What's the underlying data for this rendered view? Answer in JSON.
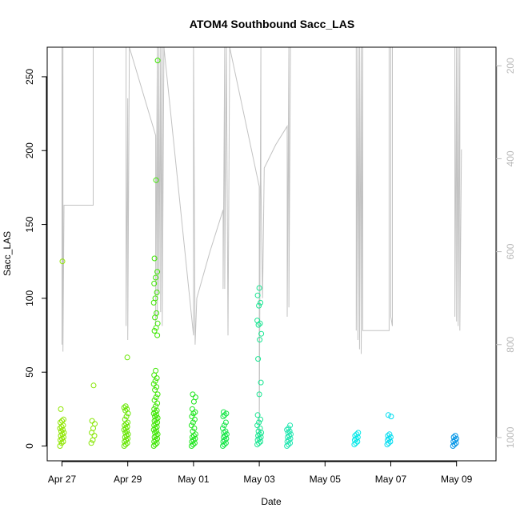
{
  "chart_data": {
    "type": "scatter",
    "title": "ATOM4 Southbound Sacc_LAS",
    "xlabel": "Date",
    "ylabel": "Sacc_LAS",
    "x_ticks": [
      "Apr 27",
      "Apr 29",
      "May 01",
      "May 03",
      "May 05",
      "May 07",
      "May 09"
    ],
    "x_tick_days": [
      0,
      2,
      4,
      6,
      8,
      10,
      12
    ],
    "xlim_days": [
      -0.45,
      13.2
    ],
    "ylim": [
      -10,
      270
    ],
    "y_ticks": [
      0,
      50,
      100,
      150,
      200,
      250
    ],
    "right_axis": {
      "ticks": [
        200,
        400,
        600,
        800,
        1000
      ],
      "range_reversed": [
        160,
        1050
      ],
      "color": "#b9b9b9",
      "description": "depth profile trace, inverted axis"
    },
    "point_style": "open circle",
    "clusters": [
      {
        "day": 0.0,
        "color": "#8fe600",
        "values": [
          0,
          2,
          3,
          4,
          5,
          6,
          7,
          8,
          9,
          10,
          11,
          12,
          13,
          14,
          16,
          17,
          18,
          25,
          125
        ]
      },
      {
        "day": 0.95,
        "color": "#86e600",
        "values": [
          2,
          4,
          7,
          9,
          12,
          15,
          17,
          41
        ]
      },
      {
        "day": 1.95,
        "color": "#66e600",
        "values": [
          0,
          1,
          2,
          3,
          4,
          5,
          6,
          7,
          8,
          9,
          10,
          11,
          12,
          13,
          14,
          15,
          16,
          18,
          20,
          22,
          24,
          25,
          26,
          27,
          60
        ]
      },
      {
        "day": 2.85,
        "color": "#3de600",
        "values": [
          0,
          1,
          2,
          3,
          4,
          5,
          6,
          7,
          8,
          9,
          10,
          11,
          12,
          13,
          14,
          15,
          16,
          17,
          18,
          19,
          20,
          21,
          22,
          23,
          24,
          25,
          27,
          29,
          31,
          33,
          35,
          38,
          40,
          42,
          44,
          46,
          48,
          51,
          75,
          78,
          80,
          83,
          87,
          90,
          97,
          100,
          104,
          110,
          114,
          118,
          127,
          180,
          261
        ]
      },
      {
        "day": 4.0,
        "color": "#1ee61e",
        "values": [
          0,
          1,
          2,
          3,
          4,
          5,
          6,
          7,
          8,
          10,
          12,
          14,
          16,
          18,
          20,
          22,
          23,
          25,
          30,
          33,
          35
        ]
      },
      {
        "day": 4.95,
        "color": "#14e646",
        "values": [
          0,
          1,
          2,
          3,
          4,
          5,
          6,
          7,
          8,
          9,
          10,
          12,
          14,
          16,
          20,
          21,
          22,
          23
        ]
      },
      {
        "day": 6.0,
        "color": "#19e692",
        "values": [
          1,
          2,
          3,
          4,
          5,
          6,
          7,
          8,
          9,
          10,
          12,
          14,
          16,
          18,
          21,
          35,
          43,
          59,
          72,
          76,
          82,
          83,
          85,
          95,
          97,
          102,
          107
        ]
      },
      {
        "day": 6.9,
        "color": "#20e6b0",
        "values": [
          0,
          1,
          2,
          3,
          4,
          5,
          6,
          7,
          8,
          9,
          10,
          11,
          12,
          14
        ]
      },
      {
        "day": 8.95,
        "color": "#00e8e8",
        "values": [
          1,
          2,
          3,
          4,
          5,
          6,
          7,
          8,
          9
        ]
      },
      {
        "day": 9.95,
        "color": "#00dcf0",
        "values": [
          1,
          2,
          3,
          4,
          5,
          6,
          7,
          8,
          20,
          21
        ]
      },
      {
        "day": 11.95,
        "color": "#0094e6",
        "values": [
          0,
          1,
          2,
          3,
          4,
          5,
          6,
          7
        ]
      }
    ],
    "depth_trace": {
      "color": "#c2c2c2",
      "points": [
        [
          0.0,
          160
        ],
        [
          0.0,
          800
        ],
        [
          0.03,
          160
        ],
        [
          0.03,
          815
        ],
        [
          0.06,
          500
        ],
        [
          0.95,
          500
        ],
        [
          0.95,
          160
        ],
        [
          1.95,
          160
        ],
        [
          1.95,
          760
        ],
        [
          2.0,
          270
        ],
        [
          2.0,
          790
        ],
        [
          2.05,
          160
        ],
        [
          2.85,
          350
        ],
        [
          2.85,
          760
        ],
        [
          2.9,
          160
        ],
        [
          2.9,
          740
        ],
        [
          2.95,
          160
        ],
        [
          2.95,
          690
        ],
        [
          3.0,
          160
        ],
        [
          3.0,
          730
        ],
        [
          3.05,
          160
        ],
        [
          3.05,
          760
        ],
        [
          3.1,
          160
        ],
        [
          4.0,
          780
        ],
        [
          4.0,
          160
        ],
        [
          4.05,
          800
        ],
        [
          4.1,
          700
        ],
        [
          4.5,
          600
        ],
        [
          4.9,
          510
        ],
        [
          4.9,
          680
        ],
        [
          4.95,
          160
        ],
        [
          4.95,
          680
        ],
        [
          5.0,
          160
        ],
        [
          5.05,
          780
        ],
        [
          5.1,
          160
        ],
        [
          6.0,
          460
        ],
        [
          6.0,
          1000
        ],
        [
          6.05,
          160
        ],
        [
          6.05,
          440
        ],
        [
          6.1,
          700
        ],
        [
          6.15,
          420
        ],
        [
          6.5,
          370
        ],
        [
          6.85,
          330
        ],
        [
          6.85,
          740
        ],
        [
          6.9,
          160
        ],
        [
          6.9,
          720
        ],
        [
          6.95,
          160
        ],
        [
          7.0,
          160
        ],
        [
          8.95,
          160
        ],
        [
          8.95,
          770
        ],
        [
          9.0,
          160
        ],
        [
          9.0,
          790
        ],
        [
          9.05,
          160
        ],
        [
          9.05,
          810
        ],
        [
          9.1,
          160
        ],
        [
          9.1,
          820
        ],
        [
          9.15,
          160
        ],
        [
          9.15,
          770
        ],
        [
          9.95,
          770
        ],
        [
          9.95,
          160
        ],
        [
          10.0,
          160
        ],
        [
          10.0,
          740
        ],
        [
          10.05,
          760
        ],
        [
          10.05,
          160
        ],
        [
          11.95,
          160
        ],
        [
          11.95,
          740
        ],
        [
          12.0,
          160
        ],
        [
          12.0,
          750
        ],
        [
          12.05,
          160
        ],
        [
          12.05,
          760
        ],
        [
          12.1,
          160
        ],
        [
          12.1,
          770
        ],
        [
          12.15,
          380
        ]
      ]
    }
  }
}
